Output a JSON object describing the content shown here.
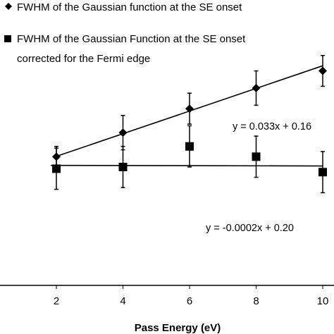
{
  "chart_data": {
    "type": "scatter",
    "xlabel": "Pass Energy (eV)",
    "ylabel": "",
    "xlim": [
      0,
      10.3
    ],
    "ylim": [
      -0.15,
      0.62
    ],
    "x_ticks": [
      2,
      4,
      6,
      8,
      10
    ],
    "grid": false,
    "legend_position": "top-left",
    "series": [
      {
        "name": "FWHM of the Gaussian function at the SE onset",
        "marker": "diamond",
        "color": "#000000",
        "x": [
          2,
          4,
          6,
          8,
          10
        ],
        "y": [
          0.225,
          0.295,
          0.365,
          0.425,
          0.475
        ],
        "error": [
          0.03,
          0.05,
          0.045,
          0.05,
          0.045
        ],
        "trendline": {
          "equation": "y = 0.033x + 0.16",
          "slope": 0.033,
          "intercept": 0.16
        }
      },
      {
        "name_line1": "FWHM of the Gaussian Function at the SE onset",
        "name_line2": "corrected for the Fermi edge",
        "marker": "square",
        "color": "#000000",
        "x": [
          2,
          4,
          6,
          8,
          10
        ],
        "y": [
          0.19,
          0.195,
          0.255,
          0.225,
          0.18
        ],
        "error": [
          0.06,
          0.06,
          0.06,
          0.06,
          0.06
        ],
        "trendline": {
          "equation": "y = -0.0002x + 0.20",
          "slope": -0.0002,
          "intercept": 0.2
        }
      }
    ]
  }
}
